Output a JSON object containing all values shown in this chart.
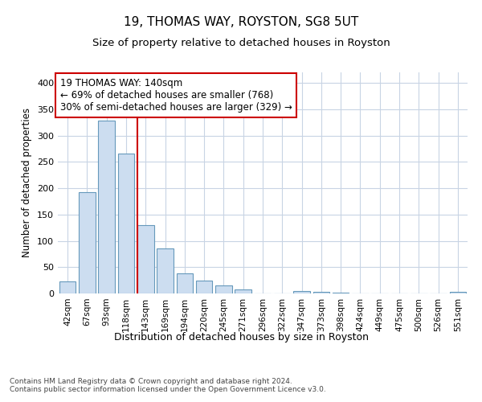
{
  "title1": "19, THOMAS WAY, ROYSTON, SG8 5UT",
  "title2": "Size of property relative to detached houses in Royston",
  "xlabel": "Distribution of detached houses by size in Royston",
  "ylabel": "Number of detached properties",
  "categories": [
    "42sqm",
    "67sqm",
    "93sqm",
    "118sqm",
    "143sqm",
    "169sqm",
    "194sqm",
    "220sqm",
    "245sqm",
    "271sqm",
    "296sqm",
    "322sqm",
    "347sqm",
    "373sqm",
    "398sqm",
    "424sqm",
    "449sqm",
    "475sqm",
    "500sqm",
    "526sqm",
    "551sqm"
  ],
  "values": [
    23,
    193,
    328,
    265,
    130,
    85,
    38,
    25,
    16,
    8,
    0,
    0,
    4,
    3,
    2,
    0,
    0,
    0,
    0,
    0,
    3
  ],
  "bar_color": "#ccddf0",
  "bar_edge_color": "#6699bb",
  "vline_color": "#cc0000",
  "annotation_text": "19 THOMAS WAY: 140sqm\n← 69% of detached houses are smaller (768)\n30% of semi-detached houses are larger (329) →",
  "annotation_box_color": "#ffffff",
  "annotation_box_edge": "#cc0000",
  "ylim": [
    0,
    420
  ],
  "yticks": [
    0,
    50,
    100,
    150,
    200,
    250,
    300,
    350,
    400
  ],
  "footnote": "Contains HM Land Registry data © Crown copyright and database right 2024.\nContains public sector information licensed under the Open Government Licence v3.0.",
  "bg_color": "#ffffff",
  "plot_bg_color": "#ffffff",
  "grid_color": "#c8d4e4"
}
